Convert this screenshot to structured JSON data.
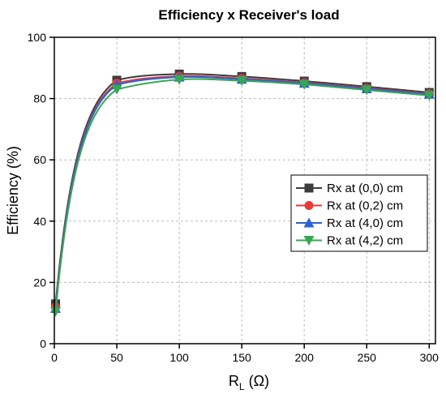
{
  "chart_data": {
    "type": "line",
    "title": "Efficiency x Receiver's load",
    "xlabel_main": "R",
    "xlabel_sub": "L",
    "xlabel_unit": " (Ω)",
    "ylabel": "Efficiency (%)",
    "xlim": [
      0,
      305
    ],
    "ylim": [
      0,
      100
    ],
    "xticks": [
      0,
      50,
      100,
      150,
      200,
      250,
      300
    ],
    "yticks": [
      0,
      20,
      40,
      60,
      80,
      100
    ],
    "grid": true,
    "legend_position": "right",
    "x": [
      1,
      50,
      100,
      150,
      200,
      250,
      300
    ],
    "series": [
      {
        "name": "Rx at (0,0) cm",
        "color": "#3c3c3c",
        "marker": "square",
        "values": [
          13,
          86,
          88,
          87.2,
          85.7,
          83.9,
          82
        ]
      },
      {
        "name": "Rx at (0,2) cm",
        "color": "#e8393a",
        "marker": "circle",
        "values": [
          12,
          85,
          87.3,
          86.6,
          85.2,
          83.4,
          81.6
        ]
      },
      {
        "name": "Rx at (4,0) cm",
        "color": "#2a63d4",
        "marker": "triangle-up",
        "values": [
          11.5,
          84.5,
          87,
          86.3,
          85,
          83.2,
          81.4
        ]
      },
      {
        "name": "Rx at (4,2) cm",
        "color": "#36a852",
        "marker": "triangle-down",
        "values": [
          10.5,
          83,
          86.2,
          85.8,
          84.6,
          82.8,
          81
        ]
      }
    ]
  }
}
